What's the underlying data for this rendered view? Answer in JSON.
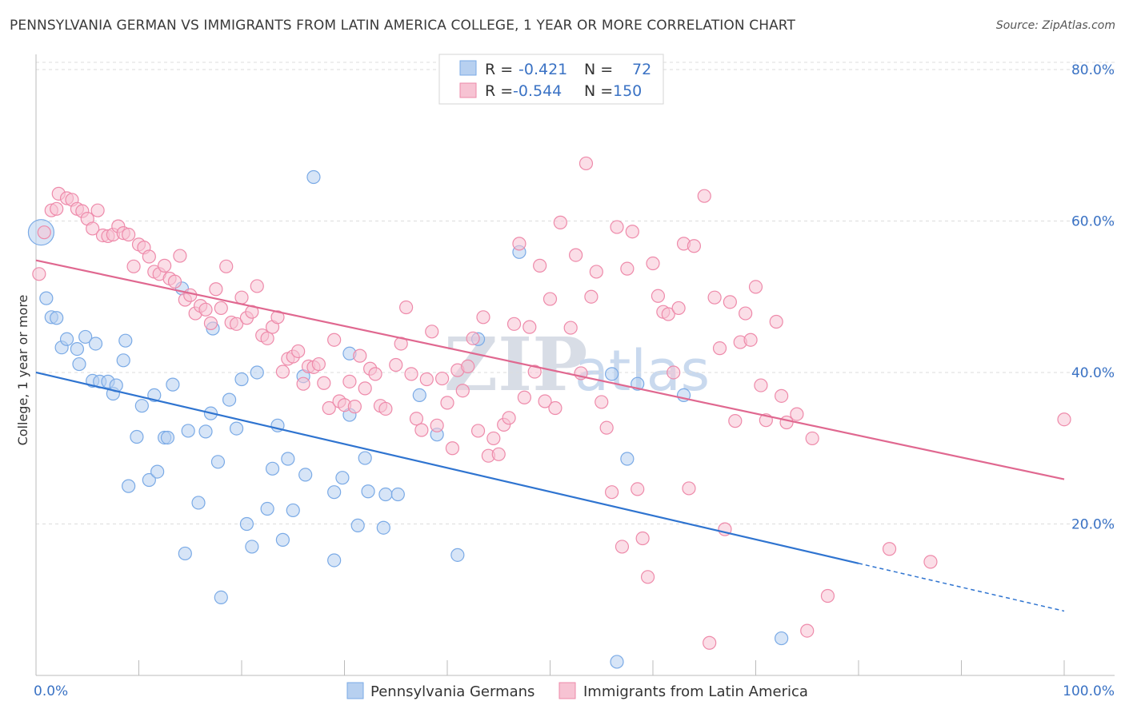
{
  "title": "PENNSYLVANIA GERMAN VS IMMIGRANTS FROM LATIN AMERICA COLLEGE, 1 YEAR OR MORE CORRELATION CHART",
  "source": "Source: ZipAtlas.com",
  "watermark": {
    "part1": "ZIP",
    "part2": "atlas"
  },
  "legend": {
    "rows": [
      {
        "r_label": "R =",
        "r_value": "-0.421",
        "n_label": "N =",
        "n_value": "72"
      },
      {
        "r_label": "R =",
        "r_value": "-0.544",
        "n_label": "N =",
        "n_value": "150"
      }
    ]
  },
  "chart_data": {
    "type": "scatter",
    "title": "PENNSYLVANIA GERMAN VS IMMIGRANTS FROM LATIN AMERICA COLLEGE, 1 YEAR OR MORE CORRELATION CHART",
    "xlabel": "",
    "ylabel": "College, 1 year or more",
    "xlim": [
      0,
      100
    ],
    "ylim": [
      0,
      82
    ],
    "x_tick_labels": [
      "0.0%",
      "100.0%"
    ],
    "y_ticks": [
      20,
      40,
      60,
      80
    ],
    "y_tick_labels": [
      "20.0%",
      "40.0%",
      "60.0%",
      "80.0%"
    ],
    "grid": true,
    "legend_position": "top-center",
    "series": [
      {
        "name": "Pennsylvania Germans",
        "color": "#7aaae6",
        "fill": "#b7d0f0",
        "line_color": "#2f74d0",
        "r": -0.421,
        "n": 72,
        "trend": {
          "x0": 0,
          "y0": 40.0,
          "x1": 80,
          "y1": 14.8,
          "x_dash_end": 100,
          "y_dash_end": 8.5
        },
        "points": [
          [
            0.5,
            58.5
          ],
          [
            1,
            49.8
          ],
          [
            1.5,
            47.3
          ],
          [
            2,
            47.2
          ],
          [
            2.5,
            43.3
          ],
          [
            3,
            44.4
          ],
          [
            4,
            43.1
          ],
          [
            4.2,
            41.1
          ],
          [
            4.8,
            44.7
          ],
          [
            5.5,
            38.9
          ],
          [
            5.8,
            43.8
          ],
          [
            6.2,
            38.8
          ],
          [
            7,
            38.8
          ],
          [
            7.5,
            37.2
          ],
          [
            7.8,
            38.3
          ],
          [
            8.5,
            41.6
          ],
          [
            8.7,
            44.2
          ],
          [
            9,
            25.0
          ],
          [
            9.8,
            31.5
          ],
          [
            10.3,
            35.6
          ],
          [
            11,
            25.8
          ],
          [
            11.5,
            37.0
          ],
          [
            11.8,
            26.9
          ],
          [
            12.5,
            31.4
          ],
          [
            12.8,
            31.4
          ],
          [
            13.3,
            38.4
          ],
          [
            14.2,
            51.1
          ],
          [
            14.5,
            16.1
          ],
          [
            14.8,
            32.3
          ],
          [
            15.8,
            22.8
          ],
          [
            16.5,
            32.2
          ],
          [
            17,
            34.6
          ],
          [
            17.2,
            45.8
          ],
          [
            17.7,
            28.2
          ],
          [
            18,
            10.3
          ],
          [
            18.8,
            36.4
          ],
          [
            19.5,
            32.6
          ],
          [
            20,
            39.1
          ],
          [
            20.5,
            20.0
          ],
          [
            21,
            17.0
          ],
          [
            21.5,
            40.0
          ],
          [
            22.5,
            22.0
          ],
          [
            23,
            27.3
          ],
          [
            23.5,
            33.0
          ],
          [
            24,
            17.9
          ],
          [
            24.5,
            28.6
          ],
          [
            25,
            21.8
          ],
          [
            26,
            39.5
          ],
          [
            26.2,
            26.5
          ],
          [
            27,
            65.8
          ],
          [
            29,
            24.2
          ],
          [
            29,
            15.2
          ],
          [
            29.8,
            26.1
          ],
          [
            30.5,
            42.5
          ],
          [
            30.5,
            34.4
          ],
          [
            31.3,
            19.8
          ],
          [
            32,
            28.7
          ],
          [
            32.3,
            24.3
          ],
          [
            33.8,
            19.5
          ],
          [
            34,
            23.9
          ],
          [
            35.2,
            23.9
          ],
          [
            37.3,
            37.0
          ],
          [
            39,
            31.8
          ],
          [
            41,
            15.9
          ],
          [
            43,
            44.4
          ],
          [
            47,
            55.9
          ],
          [
            56,
            39.8
          ],
          [
            57.5,
            28.6
          ],
          [
            58.5,
            38.5
          ],
          [
            63,
            37.0
          ],
          [
            72.5,
            4.9
          ],
          [
            56.5,
            1.8
          ]
        ]
      },
      {
        "name": "Immigrants from Latin America",
        "color": "#ee8aaa",
        "fill": "#f7c3d3",
        "line_color": "#e06890",
        "r": -0.544,
        "n": 150,
        "trend": {
          "x0": 0,
          "y0": 54.8,
          "x1": 100,
          "y1": 25.9
        },
        "points": [
          [
            0.3,
            53.0
          ],
          [
            0.8,
            58.5
          ],
          [
            1.5,
            61.4
          ],
          [
            2,
            61.6
          ],
          [
            2.2,
            63.6
          ],
          [
            3,
            63.0
          ],
          [
            3.5,
            62.8
          ],
          [
            4,
            61.6
          ],
          [
            4.5,
            61.3
          ],
          [
            5,
            60.3
          ],
          [
            5.5,
            59.0
          ],
          [
            6,
            61.4
          ],
          [
            6.5,
            58.1
          ],
          [
            7,
            58.0
          ],
          [
            7.5,
            58.2
          ],
          [
            8,
            59.3
          ],
          [
            8.5,
            58.4
          ],
          [
            9,
            58.2
          ],
          [
            9.5,
            54.0
          ],
          [
            10,
            56.9
          ],
          [
            10.5,
            56.5
          ],
          [
            11,
            55.3
          ],
          [
            11.5,
            53.3
          ],
          [
            12,
            53.0
          ],
          [
            12.5,
            54.1
          ],
          [
            13,
            52.4
          ],
          [
            13.5,
            52.0
          ],
          [
            14,
            55.4
          ],
          [
            14.5,
            49.6
          ],
          [
            15,
            50.2
          ],
          [
            15.5,
            47.8
          ],
          [
            16,
            48.8
          ],
          [
            16.5,
            48.3
          ],
          [
            17,
            46.5
          ],
          [
            17.5,
            51.0
          ],
          [
            18,
            48.5
          ],
          [
            18.5,
            54.0
          ],
          [
            19,
            46.6
          ],
          [
            19.5,
            46.4
          ],
          [
            20,
            49.9
          ],
          [
            20.5,
            47.2
          ],
          [
            21,
            48.0
          ],
          [
            21.5,
            51.4
          ],
          [
            22,
            44.9
          ],
          [
            22.5,
            44.5
          ],
          [
            23,
            46.0
          ],
          [
            23.5,
            47.3
          ],
          [
            24,
            40.1
          ],
          [
            24.5,
            41.8
          ],
          [
            25,
            42.1
          ],
          [
            25.5,
            42.8
          ],
          [
            26,
            38.5
          ],
          [
            26.5,
            40.8
          ],
          [
            27,
            40.7
          ],
          [
            27.5,
            41.1
          ],
          [
            28,
            38.6
          ],
          [
            28.5,
            35.3
          ],
          [
            29,
            44.3
          ],
          [
            29.5,
            36.2
          ],
          [
            30,
            35.7
          ],
          [
            30.5,
            38.8
          ],
          [
            31,
            35.5
          ],
          [
            31.5,
            42.2
          ],
          [
            32,
            37.9
          ],
          [
            32.5,
            40.5
          ],
          [
            33,
            39.8
          ],
          [
            33.5,
            35.6
          ],
          [
            34,
            35.2
          ],
          [
            35,
            41.0
          ],
          [
            35.5,
            43.8
          ],
          [
            36,
            48.6
          ],
          [
            36.5,
            39.8
          ],
          [
            37,
            33.9
          ],
          [
            37.5,
            32.4
          ],
          [
            38,
            39.1
          ],
          [
            38.5,
            45.4
          ],
          [
            39,
            33.0
          ],
          [
            39.5,
            39.2
          ],
          [
            40,
            36.0
          ],
          [
            40.5,
            30.0
          ],
          [
            41,
            40.3
          ],
          [
            41.5,
            37.6
          ],
          [
            42,
            40.8
          ],
          [
            42.5,
            44.5
          ],
          [
            43,
            32.3
          ],
          [
            43.5,
            47.3
          ],
          [
            44,
            29.0
          ],
          [
            44.5,
            31.3
          ],
          [
            45,
            29.2
          ],
          [
            45.5,
            33.1
          ],
          [
            46,
            34.0
          ],
          [
            46.5,
            46.4
          ],
          [
            47,
            57.0
          ],
          [
            47.5,
            36.7
          ],
          [
            48,
            46.0
          ],
          [
            48.5,
            40.1
          ],
          [
            49,
            54.1
          ],
          [
            49.5,
            36.2
          ],
          [
            50,
            49.7
          ],
          [
            50.5,
            35.3
          ],
          [
            51,
            59.8
          ],
          [
            52,
            45.9
          ],
          [
            52.5,
            55.5
          ],
          [
            53,
            39.9
          ],
          [
            53.5,
            67.6
          ],
          [
            54,
            50.0
          ],
          [
            54.5,
            53.3
          ],
          [
            55,
            36.1
          ],
          [
            55.5,
            32.7
          ],
          [
            56,
            24.2
          ],
          [
            56.5,
            59.2
          ],
          [
            57,
            17.0
          ],
          [
            57.5,
            53.7
          ],
          [
            58,
            58.6
          ],
          [
            58.5,
            24.6
          ],
          [
            59,
            18.1
          ],
          [
            59.5,
            13.0
          ],
          [
            60,
            54.4
          ],
          [
            60.5,
            50.1
          ],
          [
            61,
            48.0
          ],
          [
            61.5,
            47.7
          ],
          [
            62,
            40.0
          ],
          [
            62.5,
            48.5
          ],
          [
            63,
            57.0
          ],
          [
            63.5,
            24.7
          ],
          [
            64,
            56.7
          ],
          [
            65,
            63.3
          ],
          [
            65.5,
            4.3
          ],
          [
            66,
            49.9
          ],
          [
            66.5,
            43.2
          ],
          [
            67,
            19.3
          ],
          [
            67.5,
            49.3
          ],
          [
            68,
            33.6
          ],
          [
            68.5,
            44.0
          ],
          [
            69,
            47.8
          ],
          [
            69.5,
            44.3
          ],
          [
            70,
            51.3
          ],
          [
            70.5,
            38.3
          ],
          [
            71,
            33.7
          ],
          [
            72,
            46.7
          ],
          [
            72.5,
            36.9
          ],
          [
            73,
            33.4
          ],
          [
            74,
            34.5
          ],
          [
            75,
            5.9
          ],
          [
            75.5,
            31.3
          ],
          [
            77,
            10.5
          ],
          [
            83,
            16.7
          ],
          [
            87,
            15.0
          ],
          [
            100,
            33.8
          ]
        ]
      }
    ]
  }
}
